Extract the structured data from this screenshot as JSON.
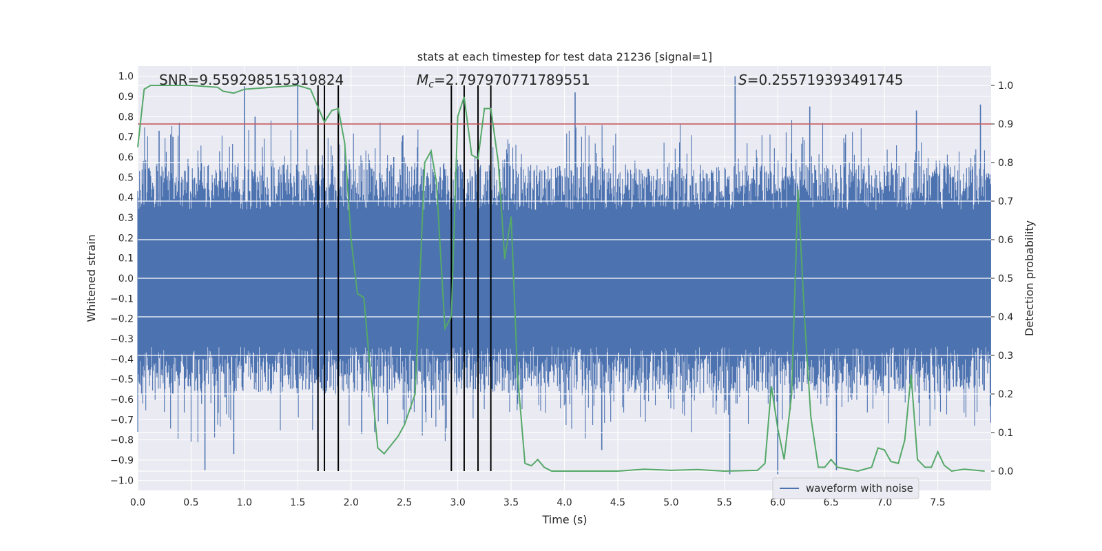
{
  "chart_data": {
    "type": "line",
    "title": "stats at each timestep for test data 21236 [signal=1]",
    "xlabel": "Time (s)",
    "ylabel": "Whitened strain",
    "y2label": "Detection probability",
    "xlim": [
      0.0,
      8.0
    ],
    "ylim": [
      -1.05,
      1.05
    ],
    "y2lim": [
      -0.05,
      1.05
    ],
    "x_ticks": [
      "0.0",
      "0.5",
      "1.0",
      "1.5",
      "2.0",
      "2.5",
      "3.0",
      "3.5",
      "4.0",
      "4.5",
      "5.0",
      "5.5",
      "6.0",
      "6.5",
      "7.0",
      "7.5"
    ],
    "y_ticks": [
      "1.0",
      "0.9",
      "0.8",
      "0.7",
      "0.6",
      "0.5",
      "0.4",
      "0.3",
      "0.2",
      "0.1",
      "0.0",
      "-0.1",
      "-0.2",
      "-0.3",
      "-0.4",
      "-0.5",
      "-0.6",
      "-0.7",
      "-0.8",
      "-0.9",
      "-1.0"
    ],
    "y2_ticks": [
      "1.0",
      "0.9",
      "0.8",
      "0.7",
      "0.6",
      "0.5",
      "0.4",
      "0.3",
      "0.2",
      "0.1",
      "0.0"
    ],
    "grid": true,
    "legend_position": "lower-right",
    "annotations": {
      "snr": "SNR=9.559298515319824",
      "mc": "M_c=2.797970771789551",
      "s": "S=0.255719393491745"
    },
    "threshold": {
      "value": 0.9,
      "axis": "y2",
      "color": "#c44e52"
    },
    "vertical_lines": [
      1.69,
      1.75,
      1.88,
      2.94,
      3.06,
      3.19,
      3.31
    ],
    "series": [
      {
        "name": "waveform with noise",
        "axis": "y1",
        "color": "#4c72b0",
        "style": "dense-noise",
        "envelope": 0.45,
        "peaks": [
          [
            1.0,
            0.95
          ],
          [
            1.5,
            0.99
          ],
          [
            1.1,
            0.8
          ],
          [
            0.2,
            0.73
          ],
          [
            0.33,
            0.7
          ],
          [
            4.1,
            0.92
          ],
          [
            5.6,
            1.0
          ],
          [
            6.3,
            0.85
          ],
          [
            7.9,
            0.86
          ],
          [
            7.3,
            0.83
          ],
          [
            2.4,
            0.6
          ],
          [
            0.63,
            -0.95
          ],
          [
            0.9,
            -0.87
          ],
          [
            3.06,
            -0.9
          ],
          [
            5.55,
            -0.97
          ],
          [
            6.55,
            -0.95
          ],
          [
            6.0,
            -0.97
          ],
          [
            1.88,
            -0.7
          ],
          [
            4.35,
            -0.85
          ],
          [
            2.1,
            -0.77
          ]
        ]
      },
      {
        "name": "",
        "axis": "y2",
        "color": "#55a868",
        "style": "line",
        "points": [
          [
            0.0,
            0.84
          ],
          [
            0.06,
            0.99
          ],
          [
            0.12,
            1.0
          ],
          [
            0.5,
            1.0
          ],
          [
            0.75,
            0.995
          ],
          [
            0.8,
            0.985
          ],
          [
            0.9,
            0.98
          ],
          [
            1.0,
            0.99
          ],
          [
            1.25,
            0.995
          ],
          [
            1.5,
            1.0
          ],
          [
            1.62,
            0.99
          ],
          [
            1.68,
            0.95
          ],
          [
            1.75,
            0.905
          ],
          [
            1.82,
            0.935
          ],
          [
            1.88,
            0.94
          ],
          [
            1.94,
            0.85
          ],
          [
            2.0,
            0.6
          ],
          [
            2.06,
            0.46
          ],
          [
            2.12,
            0.45
          ],
          [
            2.18,
            0.26
          ],
          [
            2.25,
            0.06
          ],
          [
            2.31,
            0.045
          ],
          [
            2.44,
            0.09
          ],
          [
            2.5,
            0.12
          ],
          [
            2.6,
            0.2
          ],
          [
            2.69,
            0.8
          ],
          [
            2.75,
            0.83
          ],
          [
            2.8,
            0.75
          ],
          [
            2.88,
            0.37
          ],
          [
            2.94,
            0.4
          ],
          [
            3.0,
            0.92
          ],
          [
            3.06,
            0.97
          ],
          [
            3.13,
            0.82
          ],
          [
            3.19,
            0.81
          ],
          [
            3.25,
            0.94
          ],
          [
            3.31,
            0.94
          ],
          [
            3.38,
            0.8
          ],
          [
            3.44,
            0.55
          ],
          [
            3.5,
            0.66
          ],
          [
            3.56,
            0.25
          ],
          [
            3.63,
            0.02
          ],
          [
            3.69,
            0.014
          ],
          [
            3.75,
            0.03
          ],
          [
            3.81,
            0.01
          ],
          [
            3.88,
            0.0
          ],
          [
            4.25,
            0.0
          ],
          [
            4.5,
            0.0
          ],
          [
            4.75,
            0.005
          ],
          [
            5.0,
            0.002
          ],
          [
            5.25,
            0.004
          ],
          [
            5.5,
            0.0
          ],
          [
            5.81,
            0.002
          ],
          [
            5.88,
            0.02
          ],
          [
            5.94,
            0.22
          ],
          [
            6.0,
            0.11
          ],
          [
            6.06,
            0.03
          ],
          [
            6.13,
            0.2
          ],
          [
            6.19,
            0.73
          ],
          [
            6.25,
            0.4
          ],
          [
            6.31,
            0.14
          ],
          [
            6.38,
            0.01
          ],
          [
            6.44,
            0.01
          ],
          [
            6.5,
            0.03
          ],
          [
            6.56,
            0.01
          ],
          [
            6.75,
            0.0
          ],
          [
            6.88,
            0.01
          ],
          [
            6.94,
            0.06
          ],
          [
            7.0,
            0.055
          ],
          [
            7.06,
            0.025
          ],
          [
            7.13,
            0.02
          ],
          [
            7.19,
            0.08
          ],
          [
            7.25,
            0.25
          ],
          [
            7.31,
            0.03
          ],
          [
            7.38,
            0.01
          ],
          [
            7.44,
            0.01
          ],
          [
            7.5,
            0.05
          ],
          [
            7.56,
            0.015
          ],
          [
            7.63,
            0.0
          ],
          [
            7.75,
            0.005
          ],
          [
            7.94,
            0.0
          ]
        ]
      }
    ]
  }
}
